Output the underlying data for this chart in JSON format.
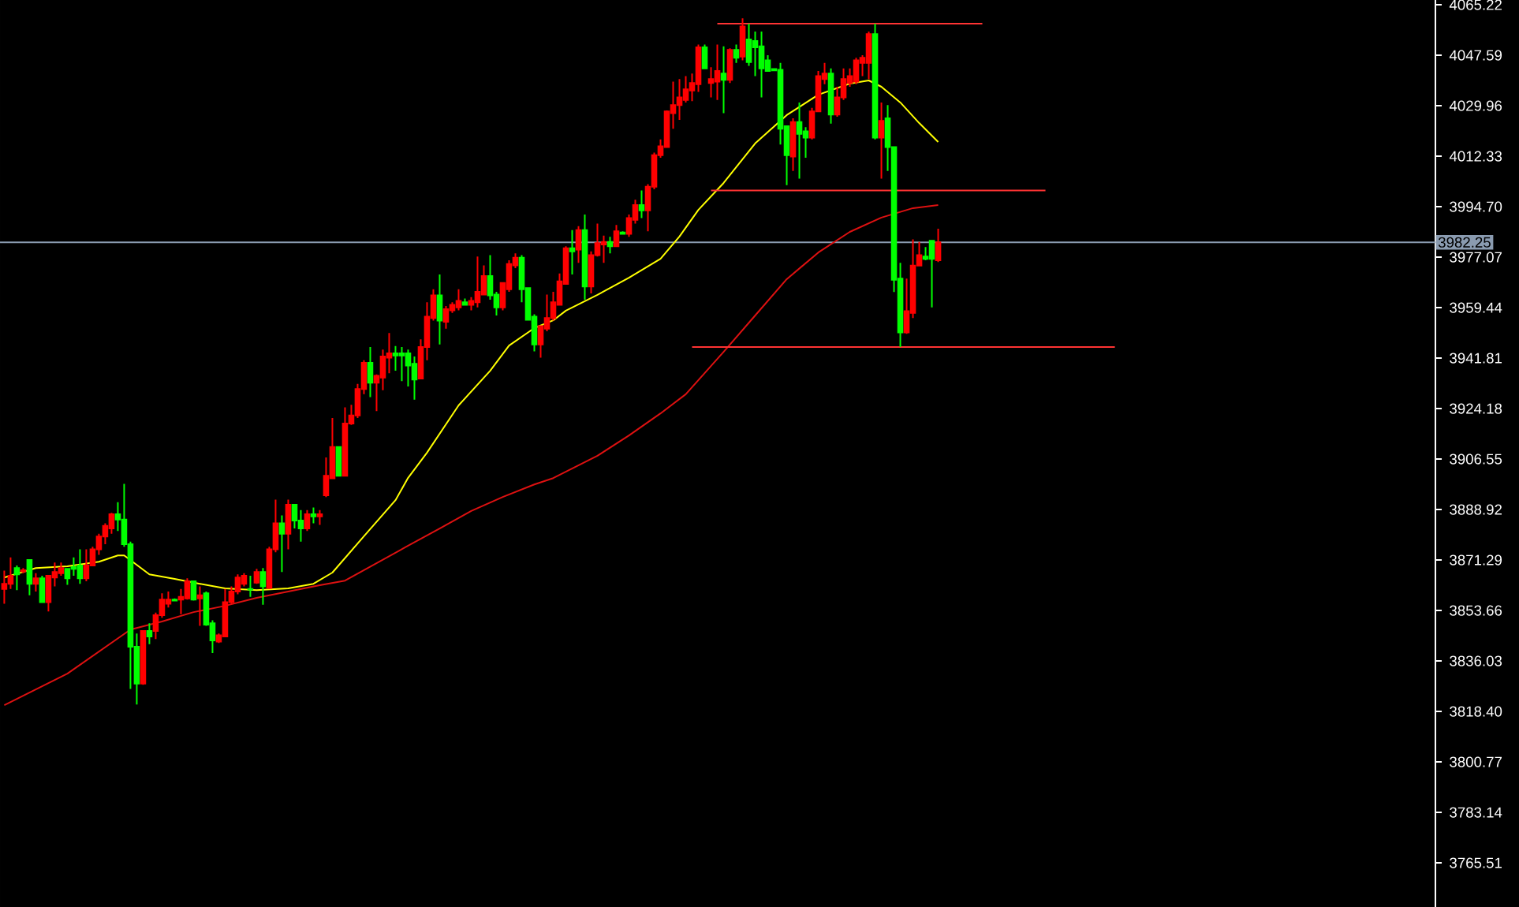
{
  "chart_data": {
    "type": "candlestick",
    "categories": [
      null,
      null,
      null,
      null,
      null,
      null,
      null,
      null,
      null,
      null,
      null,
      null,
      null,
      null,
      null,
      null,
      null,
      null,
      null,
      null,
      null,
      null,
      null,
      null,
      null,
      null,
      null,
      null,
      null,
      null,
      null,
      null,
      null,
      null,
      null,
      null,
      null,
      null,
      null,
      null,
      null,
      null,
      null,
      null,
      null,
      null,
      null,
      null,
      null,
      null,
      null,
      null,
      null,
      null,
      null,
      null,
      null,
      null,
      null,
      null,
      null,
      null,
      null,
      null,
      null,
      null,
      null,
      null,
      null,
      null,
      null,
      null,
      null,
      null,
      null,
      null,
      null,
      null,
      null,
      null,
      null,
      null,
      null,
      null,
      null,
      null,
      null,
      null,
      null,
      null,
      null,
      null,
      null,
      null,
      null,
      null,
      null,
      null,
      null,
      null,
      null,
      null,
      null,
      null,
      null,
      null,
      null,
      null,
      null,
      null,
      null,
      null,
      null,
      null,
      null,
      null,
      null,
      null,
      null,
      null,
      null,
      null,
      null,
      null,
      null,
      null,
      null,
      null,
      null,
      null,
      null,
      null,
      null,
      null,
      null,
      null,
      null,
      null,
      null,
      null,
      null,
      null,
      null,
      null,
      null,
      null,
      null,
      null,
      null,
      null,
      null,
      null,
      null,
      null,
      null,
      null,
      null,
      null,
      null,
      null,
      null,
      null,
      null,
      null,
      null,
      null,
      null,
      null,
      null,
      null,
      null,
      null,
      null,
      null,
      null,
      null,
      null,
      null,
      null,
      null,
      null,
      null,
      null,
      null,
      null,
      null,
      null,
      null,
      null,
      null,
      null,
      null,
      null,
      null,
      null,
      null,
      null,
      null,
      null,
      null,
      null,
      null,
      null,
      null,
      null,
      null,
      null,
      null,
      null,
      null,
      null,
      null,
      null,
      null,
      null,
      null,
      null,
      null,
      null,
      null,
      null,
      null,
      null,
      null,
      null,
      null,
      null
    ],
    "ohlc": [
      [
        3861.2,
        3867.6,
        3856.0,
        3863.0
      ],
      [
        3863.0,
        3872.2,
        3861.2,
        3865.8
      ],
      [
        3868.5,
        3869.4,
        3860.8,
        3866.3
      ],
      [
        3867.3,
        3868.5,
        3866.7,
        3867.7
      ],
      [
        3871.3,
        3871.3,
        3859.0,
        3863.0
      ],
      [
        3863.0,
        3866.7,
        3860.3,
        3864.9
      ],
      [
        3864.9,
        3865.8,
        3856.6,
        3856.6
      ],
      [
        3856.6,
        3865.8,
        3853.3,
        3865.8
      ],
      [
        3865.2,
        3870.4,
        3862.1,
        3867.1
      ],
      [
        3866.7,
        3870.4,
        3865.8,
        3868.5
      ],
      [
        3868.2,
        3868.5,
        3862.6,
        3864.9
      ],
      [
        3868.8,
        3872.2,
        3865.8,
        3868.2
      ],
      [
        3869.4,
        3875.0,
        3863.0,
        3864.9
      ],
      [
        3864.9,
        3875.0,
        3863.9,
        3869.4
      ],
      [
        3869.4,
        3875.9,
        3869.4,
        3875.0
      ],
      [
        3875.0,
        3880.5,
        3873.1,
        3879.5
      ],
      [
        3879.5,
        3884.1,
        3876.8,
        3883.2
      ],
      [
        3882.3,
        3887.8,
        3880.5,
        3887.3
      ],
      [
        3887.3,
        3891.5,
        3881.4,
        3885.4
      ],
      [
        3885.4,
        3897.9,
        3875.9,
        3876.8
      ],
      [
        3876.8,
        3877.7,
        3826.3,
        3841.0
      ],
      [
        3841.0,
        3845.6,
        3820.8,
        3828.1
      ],
      [
        3828.1,
        3846.5,
        3827.7,
        3846.5
      ],
      [
        3846.5,
        3849.2,
        3841.9,
        3844.6
      ],
      [
        3846.5,
        3852.9,
        3843.7,
        3852.0
      ],
      [
        3852.0,
        3859.7,
        3851.1,
        3857.5
      ],
      [
        3856.0,
        3860.3,
        3854.7,
        3857.5
      ],
      [
        3857.5,
        3857.9,
        3857.1,
        3857.1
      ],
      [
        3857.5,
        3861.2,
        3852.4,
        3858.4
      ],
      [
        3857.9,
        3864.9,
        3857.5,
        3863.9
      ],
      [
        3863.9,
        3863.9,
        3857.1,
        3857.5
      ],
      [
        3857.9,
        3862.1,
        3848.3,
        3859.0
      ],
      [
        3859.7,
        3860.3,
        3848.3,
        3848.7
      ],
      [
        3849.2,
        3850.2,
        3838.8,
        3843.2
      ],
      [
        3842.8,
        3845.6,
        3842.3,
        3845.0
      ],
      [
        3844.6,
        3861.2,
        3844.3,
        3856.6
      ],
      [
        3856.6,
        3862.1,
        3856.0,
        3860.3
      ],
      [
        3860.3,
        3866.3,
        3859.3,
        3865.2
      ],
      [
        3863.0,
        3866.7,
        3862.1,
        3865.8
      ],
      [
        3861.2,
        3865.8,
        3858.4,
        3861.0
      ],
      [
        3863.4,
        3868.2,
        3863.0,
        3867.1
      ],
      [
        3867.1,
        3868.5,
        3855.7,
        3862.1
      ],
      [
        3861.5,
        3875.9,
        3861.2,
        3875.0
      ],
      [
        3875.0,
        3892.4,
        3874.0,
        3884.1
      ],
      [
        3884.1,
        3886.9,
        3867.1,
        3880.5
      ],
      [
        3880.5,
        3892.4,
        3875.0,
        3890.6
      ],
      [
        3890.6,
        3890.6,
        3882.3,
        3885.1
      ],
      [
        3885.1,
        3888.7,
        3877.7,
        3882.3
      ],
      [
        3882.3,
        3888.7,
        3881.4,
        3887.3
      ],
      [
        3887.3,
        3889.6,
        3884.1,
        3886.5
      ],
      [
        3886.5,
        3888.7,
        3883.6,
        3887.3
      ],
      [
        3893.9,
        3907.1,
        3893.3,
        3900.7
      ],
      [
        3899.8,
        3920.9,
        3899.8,
        3910.8
      ],
      [
        3910.8,
        3910.8,
        3900.7,
        3900.7
      ],
      [
        3900.7,
        3924.6,
        3900.7,
        3919.0
      ],
      [
        3919.0,
        3925.5,
        3918.5,
        3921.8
      ],
      [
        3921.8,
        3932.8,
        3920.9,
        3931.0
      ],
      [
        3931.0,
        3941.1,
        3929.2,
        3940.2
      ],
      [
        3940.2,
        3945.7,
        3928.2,
        3933.2
      ],
      [
        3933.2,
        3936.1,
        3923.3,
        3935.6
      ],
      [
        3935.0,
        3944.8,
        3930.6,
        3942.4
      ],
      [
        3942.0,
        3950.6,
        3936.5,
        3943.5
      ],
      [
        3943.5,
        3946.0,
        3937.4,
        3942.7
      ],
      [
        3943.5,
        3945.7,
        3933.8,
        3942.7
      ],
      [
        3943.5,
        3944.8,
        3931.9,
        3939.2
      ],
      [
        3939.8,
        3942.4,
        3927.3,
        3934.3
      ],
      [
        3934.7,
        3948.4,
        3934.7,
        3945.7
      ],
      [
        3945.7,
        3961.3,
        3941.1,
        3956.3
      ],
      [
        3955.8,
        3965.9,
        3954.9,
        3963.7
      ],
      [
        3963.7,
        3971.0,
        3946.6,
        3954.9
      ],
      [
        3954.5,
        3960.0,
        3952.1,
        3958.9
      ],
      [
        3958.5,
        3961.3,
        3957.6,
        3960.4
      ],
      [
        3959.5,
        3965.9,
        3958.5,
        3961.8
      ],
      [
        3961.3,
        3962.6,
        3960.4,
        3960.4
      ],
      [
        3960.4,
        3963.1,
        3958.5,
        3961.8
      ],
      [
        3961.3,
        3977.3,
        3959.5,
        3965.0
      ],
      [
        3964.0,
        3974.2,
        3963.7,
        3970.5
      ],
      [
        3970.5,
        3977.8,
        3962.2,
        3963.7
      ],
      [
        3964.0,
        3965.0,
        3956.7,
        3959.5
      ],
      [
        3959.5,
        3968.1,
        3958.5,
        3968.1
      ],
      [
        3965.9,
        3976.0,
        3965.0,
        3974.7
      ],
      [
        3974.2,
        3978.4,
        3973.2,
        3976.9
      ],
      [
        3976.9,
        3977.8,
        3961.3,
        3965.9
      ],
      [
        3966.3,
        3966.3,
        3954.9,
        3955.2
      ],
      [
        3956.3,
        3957.1,
        3944.2,
        3946.6
      ],
      [
        3946.6,
        3953.0,
        3942.0,
        3953.0
      ],
      [
        3952.1,
        3964.0,
        3951.2,
        3955.8
      ],
      [
        3955.8,
        3965.0,
        3954.9,
        3961.3
      ],
      [
        3960.4,
        3971.4,
        3960.4,
        3968.6
      ],
      [
        3967.7,
        3980.9,
        3967.7,
        3980.2
      ],
      [
        3980.2,
        3986.5,
        3971.0,
        3979.1
      ],
      [
        3979.7,
        3987.9,
        3975.1,
        3986.5
      ],
      [
        3986.5,
        3992.0,
        3962.2,
        3966.8
      ],
      [
        3966.8,
        3979.1,
        3964.4,
        3977.8
      ],
      [
        3977.8,
        3988.8,
        3977.3,
        3982.0
      ],
      [
        3981.5,
        3984.6,
        3975.1,
        3982.4
      ],
      [
        3982.4,
        3984.2,
        3978.4,
        3980.9
      ],
      [
        3980.9,
        3988.3,
        3980.6,
        3986.1
      ],
      [
        3985.7,
        3986.1,
        3985.2,
        3985.2
      ],
      [
        3985.2,
        3992.0,
        3984.2,
        3990.7
      ],
      [
        3990.1,
        3997.1,
        3988.8,
        3995.3
      ],
      [
        3995.3,
        4000.4,
        3990.7,
        3993.4
      ],
      [
        3993.4,
        4002.6,
        3986.1,
        4001.7
      ],
      [
        4001.7,
        4013.6,
        4000.8,
        4012.7
      ],
      [
        4012.7,
        4018.2,
        4011.8,
        4015.8
      ],
      [
        4015.5,
        4028.3,
        4015.5,
        4028.0
      ],
      [
        4027.4,
        4038.4,
        4021.9,
        4030.2
      ],
      [
        4030.2,
        4039.3,
        4025.0,
        4032.9
      ],
      [
        4032.0,
        4040.3,
        4031.1,
        4035.7
      ],
      [
        4035.3,
        4041.2,
        4031.6,
        4037.9
      ],
      [
        4037.5,
        4051.3,
        4034.8,
        4050.4
      ],
      [
        4050.4,
        4051.3,
        4042.7,
        4043.0
      ],
      [
        4037.9,
        4043.4,
        4032.9,
        4039.3
      ],
      [
        4038.4,
        4051.3,
        4032.0,
        4042.1
      ],
      [
        4041.2,
        4050.7,
        4027.4,
        4039.0
      ],
      [
        4039.0,
        4050.0,
        4037.9,
        4049.5
      ],
      [
        4049.5,
        4051.3,
        4044.9,
        4046.7
      ],
      [
        4047.1,
        4060.5,
        4045.8,
        4057.7
      ],
      [
        4053.1,
        4058.6,
        4043.9,
        4045.2
      ],
      [
        4052.6,
        4055.9,
        4040.3,
        4050.4
      ],
      [
        4050.7,
        4055.9,
        4032.9,
        4043.0
      ],
      [
        4045.8,
        4047.6,
        4042.1,
        4042.1
      ],
      [
        4042.8,
        4043.0,
        4042.1,
        4042.3
      ],
      [
        4042.5,
        4044.9,
        4016.4,
        4021.9
      ],
      [
        4022.8,
        4022.8,
        4002.2,
        4012.7
      ],
      [
        4012.2,
        4025.6,
        4007.2,
        4024.3
      ],
      [
        4024.3,
        4031.1,
        4004.5,
        4020.1
      ],
      [
        4021.0,
        4022.5,
        4011.8,
        4018.8
      ],
      [
        4018.8,
        4029.2,
        4018.2,
        4028.0
      ],
      [
        4028.0,
        4042.1,
        4028.0,
        4040.3
      ],
      [
        4039.3,
        4044.9,
        4037.5,
        4041.2
      ],
      [
        4041.2,
        4043.0,
        4023.7,
        4026.9
      ],
      [
        4026.9,
        4036.6,
        4026.1,
        4032.9
      ],
      [
        4032.9,
        4043.0,
        4032.0,
        4039.3
      ],
      [
        4037.9,
        4043.0,
        4036.6,
        4040.3
      ],
      [
        4038.4,
        4046.7,
        4037.5,
        4045.8
      ],
      [
        4044.9,
        4047.6,
        4040.3,
        4046.7
      ],
      [
        4044.9,
        4055.9,
        4039.3,
        4055.0
      ],
      [
        4055.0,
        4058.6,
        4018.2,
        4018.8
      ],
      [
        4018.8,
        4031.1,
        4004.5,
        4024.7
      ],
      [
        4025.6,
        4030.2,
        4007.2,
        4015.5
      ],
      [
        4015.5,
        4015.5,
        3964.9,
        3969.2
      ],
      [
        3969.6,
        3975.1,
        3945.7,
        3950.8
      ],
      [
        3950.8,
        3969.6,
        3950.3,
        3958.2
      ],
      [
        3957.6,
        3983.3,
        3955.8,
        3974.1
      ],
      [
        3974.1,
        3982.4,
        3974.1,
        3977.8
      ],
      [
        3977.3,
        3980.6,
        3976.0,
        3976.5
      ],
      [
        3982.8,
        3982.8,
        3959.5,
        3976.5
      ],
      [
        3976.0,
        3987.0,
        3975.4,
        3982.25
      ],
      null,
      null,
      null,
      null,
      null,
      null,
      null,
      null,
      null,
      null,
      null,
      null,
      null,
      null,
      null,
      null,
      null,
      null,
      null,
      null,
      null,
      null,
      null,
      null,
      null,
      null,
      null,
      null,
      null,
      null,
      null,
      null,
      null,
      null,
      null,
      null,
      null,
      null,
      null,
      null,
      null,
      null,
      null,
      null,
      null,
      null,
      null,
      null,
      null,
      null,
      null,
      null,
      null,
      null,
      null,
      null,
      null,
      null,
      null,
      null,
      null,
      null,
      null,
      null,
      null,
      null,
      null,
      null,
      null,
      null,
      null,
      null,
      null,
      null,
      null,
      null,
      null,
      null
    ],
    "colors": [
      "#ff0000",
      "#ff0000",
      "#00ff00",
      "#ff0000",
      "#00ff00",
      "#ff0000",
      "#00ff00",
      "#ff0000",
      "#ff0000",
      "#ff0000",
      "#00ff00",
      "#00ff00",
      "#00ff00",
      "#ff0000",
      "#ff0000",
      "#ff0000",
      "#ff0000",
      "#ff0000",
      "#00ff00",
      "#00ff00",
      "#00ff00",
      "#00ff00",
      "#ff0000",
      "#00ff00",
      "#ff0000",
      "#ff0000",
      "#ff0000",
      "#00ff00",
      "#ff0000",
      "#ff0000",
      "#00ff00",
      "#ff0000",
      "#00ff00",
      "#00ff00",
      "#ff0000",
      "#ff0000",
      "#ff0000",
      "#ff0000",
      "#ff0000",
      "#00ff00",
      "#ff0000",
      "#00ff00",
      "#ff0000",
      "#ff0000",
      "#00ff00",
      "#ff0000",
      "#00ff00",
      "#00ff00",
      "#ff0000",
      "#00ff00",
      "#ff0000",
      "#ff0000",
      "#ff0000",
      "#00ff00",
      "#ff0000",
      "#ff0000",
      "#ff0000",
      "#ff0000",
      "#00ff00",
      "#ff0000",
      "#ff0000",
      "#ff0000",
      "#00ff00",
      "#00ff00",
      "#00ff00",
      "#00ff00",
      "#ff0000",
      "#ff0000",
      "#ff0000",
      "#00ff00",
      "#ff0000",
      "#ff0000",
      "#ff0000",
      "#00ff00",
      "#ff0000",
      "#ff0000",
      "#ff0000",
      "#00ff00",
      "#00ff00",
      "#ff0000",
      "#ff0000",
      "#ff0000",
      "#00ff00",
      "#00ff00",
      "#00ff00",
      "#ff0000",
      "#ff0000",
      "#ff0000",
      "#ff0000",
      "#ff0000",
      "#00ff00",
      "#ff0000",
      "#00ff00",
      "#ff0000",
      "#ff0000",
      "#ff0000",
      "#00ff00",
      "#ff0000",
      "#00ff00",
      "#ff0000",
      "#ff0000",
      "#00ff00",
      "#ff0000",
      "#ff0000",
      "#ff0000",
      "#ff0000",
      "#ff0000",
      "#ff0000",
      "#ff0000",
      "#ff0000",
      "#ff0000",
      "#00ff00",
      "#ff0000",
      "#ff0000",
      "#00ff00",
      "#ff0000",
      "#00ff00",
      "#ff0000",
      "#00ff00",
      "#00ff00",
      "#00ff00",
      "#00ff00",
      "#00ff00",
      "#00ff00",
      "#00ff00",
      "#ff0000",
      "#00ff00",
      "#00ff00",
      "#ff0000",
      "#ff0000",
      "#ff0000",
      "#00ff00",
      "#ff0000",
      "#ff0000",
      "#ff0000",
      "#ff0000",
      "#ff0000",
      "#ff0000",
      "#00ff00",
      "#ff0000",
      "#00ff00",
      "#00ff00",
      "#00ff00",
      "#ff0000",
      "#ff0000",
      "#ff0000",
      "#00ff00",
      "#00ff00",
      "#ff0000",
      null,
      null,
      null,
      null,
      null,
      null,
      null,
      null,
      null,
      null,
      null,
      null,
      null,
      null,
      null,
      null,
      null,
      null,
      null,
      null,
      null,
      null,
      null,
      null,
      null,
      null,
      null,
      null,
      null,
      null,
      null,
      null,
      null,
      null,
      null,
      null,
      null,
      null,
      null,
      null,
      null,
      null,
      null,
      null,
      null,
      null,
      null,
      null,
      null,
      null,
      null,
      null,
      null,
      null,
      null,
      null,
      null,
      null,
      null,
      null,
      null,
      null,
      null,
      null,
      null,
      null,
      null,
      null,
      null,
      null,
      null,
      null,
      null,
      null,
      null,
      null,
      null,
      null
    ],
    "series": [
      {
        "type": "line",
        "color": "#ffff00",
        "values": [
          3865.2,
          null,
          null,
          null,
          null,
          3868.5,
          null,
          null,
          null,
          null,
          3869.1,
          null,
          null,
          null,
          null,
          3870.7,
          null,
          null,
          3872.9,
          3872.9,
          null,
          3869.6,
          null,
          3866.3,
          null,
          null,
          null,
          3864.7,
          null,
          null,
          null,
          3863.0,
          null,
          null,
          null,
          3861.4,
          null,
          null,
          null,
          null,
          3860.8,
          null,
          null,
          null,
          null,
          3861.4,
          null,
          null,
          null,
          3863.0,
          null,
          null,
          3866.9,
          null,
          null,
          null,
          null,
          3879.6,
          null,
          null,
          null,
          null,
          3892.2,
          null,
          3900.0,
          null,
          null,
          3908.8,
          null,
          null,
          null,
          null,
          3925.3,
          null,
          null,
          null,
          null,
          3937.4,
          null,
          null,
          3946.2,
          null,
          null,
          null,
          3952.3,
          null,
          null,
          3955.0,
          null,
          3958.4,
          null,
          null,
          null,
          null,
          3963.9,
          null,
          null,
          null,
          null,
          3969.9,
          null,
          null,
          null,
          null,
          3976.5,
          null,
          null,
          3984.3,
          null,
          null,
          3993.6,
          null,
          null,
          null,
          4003.0,
          null,
          null,
          null,
          null,
          4016.8,
          null,
          null,
          null,
          null,
          4026.7,
          null,
          null,
          null,
          null,
          4033.8,
          null,
          null,
          null,
          null,
          4037.7,
          null,
          null,
          4038.8,
          null,
          4036.6,
          null,
          null,
          4031.1,
          null,
          null,
          4023.9,
          null,
          null,
          4017.3,
          null,
          null,
          null,
          null,
          null,
          null,
          null,
          null,
          null,
          null,
          null,
          null,
          null,
          null,
          null,
          null,
          null,
          null,
          null,
          null,
          null,
          null,
          null,
          null,
          null,
          null,
          null,
          null,
          null,
          null,
          null,
          null,
          null,
          null,
          null,
          null,
          null,
          null,
          null,
          null,
          null,
          null,
          null,
          null,
          null,
          null,
          null,
          null,
          null,
          null,
          null,
          null,
          null,
          null,
          null,
          null,
          null,
          null,
          null,
          null,
          null,
          null,
          null,
          null,
          null,
          null,
          null,
          null,
          null,
          null,
          null,
          null,
          null,
          null,
          null,
          null,
          null,
          null
        ]
      },
      {
        "type": "line",
        "color": "#dd1111",
        "values": [
          3820.6,
          null,
          null,
          null,
          null,
          null,
          null,
          null,
          null,
          null,
          3831.6,
          null,
          null,
          null,
          null,
          null,
          null,
          null,
          null,
          null,
          3847.0,
          null,
          null,
          null,
          null,
          3849.8,
          null,
          null,
          null,
          null,
          3853.1,
          null,
          null,
          null,
          null,
          3855.3,
          null,
          null,
          null,
          null,
          3858.1,
          null,
          null,
          null,
          null,
          3860.3,
          null,
          null,
          null,
          null,
          3862.5,
          null,
          null,
          null,
          3864.1,
          null,
          null,
          null,
          null,
          3870.2,
          null,
          null,
          null,
          null,
          3876.3,
          null,
          null,
          null,
          null,
          3882.3,
          null,
          null,
          null,
          null,
          3888.4,
          null,
          null,
          null,
          null,
          3893.3,
          null,
          null,
          null,
          null,
          3897.7,
          null,
          null,
          3899.9,
          null,
          null,
          null,
          null,
          null,
          null,
          3907.7,
          null,
          null,
          null,
          null,
          3914.8,
          null,
          null,
          null,
          null,
          3922.5,
          null,
          null,
          null,
          3929.2,
          null,
          null,
          null,
          null,
          null,
          3944.0,
          null,
          null,
          null,
          null,
          3956.7,
          null,
          null,
          null,
          null,
          3969.4,
          null,
          null,
          null,
          null,
          3978.7,
          null,
          null,
          null,
          null,
          3985.9,
          null,
          null,
          null,
          null,
          3990.9,
          null,
          null,
          null,
          null,
          3994.2,
          null,
          null,
          null,
          3995.3,
          null,
          null,
          null,
          null,
          null,
          null,
          null,
          null,
          null,
          null,
          null,
          null,
          null,
          null,
          null,
          null,
          null,
          null,
          null,
          null,
          null,
          null,
          null,
          null,
          null,
          null,
          null,
          null,
          null,
          null,
          null,
          null,
          null,
          null,
          null,
          null,
          null,
          null,
          null,
          null,
          null,
          null,
          null,
          null,
          null,
          null,
          null,
          null,
          null,
          null,
          null,
          null,
          null,
          null,
          null,
          null,
          null,
          null,
          null,
          null,
          null,
          null,
          null,
          null,
          null,
          null,
          null,
          null,
          null,
          null,
          null,
          null,
          null,
          null,
          null,
          null,
          null,
          null
        ]
      },
      {
        "type": "line",
        "color": "#ff3333",
        "values": [
          null,
          null,
          null,
          null,
          null,
          null,
          null,
          null,
          null,
          null,
          null,
          null,
          null,
          null,
          null,
          null,
          null,
          null,
          null,
          null,
          null,
          null,
          null,
          null,
          null,
          null,
          null,
          null,
          null,
          null,
          null,
          null,
          null,
          null,
          null,
          null,
          null,
          null,
          null,
          null,
          null,
          null,
          null,
          null,
          null,
          null,
          null,
          null,
          null,
          null,
          null,
          null,
          null,
          null,
          null,
          null,
          null,
          null,
          null,
          null,
          null,
          null,
          null,
          null,
          null,
          null,
          null,
          null,
          null,
          null,
          null,
          null,
          null,
          null,
          null,
          null,
          null,
          null,
          null,
          null,
          null,
          null,
          null,
          null,
          null,
          null,
          null,
          null,
          null,
          null,
          null,
          null,
          null,
          null,
          null,
          null,
          null,
          null,
          null,
          null,
          null,
          null,
          null,
          null,
          null,
          null,
          null,
          null,
          null,
          null,
          null,
          null,
          null,
          4058.6,
          4058.6,
          4058.6,
          4058.6,
          4058.6,
          4058.6,
          4058.6,
          4058.6,
          4058.6,
          4058.6,
          4058.6,
          4058.6,
          4058.6,
          4058.6,
          4058.6,
          4058.6,
          4058.6,
          4058.6,
          4058.6,
          4058.6,
          4058.6,
          4058.6,
          4058.6,
          4058.6,
          4058.6,
          4058.6,
          4058.6,
          4058.6,
          4058.6,
          4058.6,
          4058.6,
          4058.6,
          4058.6,
          4058.6,
          4058.6,
          4058.6,
          4058.6,
          4058.6,
          4058.6,
          4058.6,
          4058.6,
          4058.6,
          4058.6,
          null,
          null,
          null,
          null,
          null,
          null,
          null,
          null,
          null,
          null,
          null,
          null,
          null,
          null,
          null,
          null,
          null,
          null,
          null,
          null,
          null,
          null,
          null,
          null,
          null,
          null,
          null,
          null,
          null,
          null,
          null,
          null,
          null,
          null,
          null,
          null,
          null,
          null,
          null,
          null,
          null,
          null,
          null,
          null,
          null,
          null,
          null,
          null,
          null,
          null,
          null,
          null,
          null,
          null,
          null,
          null,
          null,
          null,
          null,
          null,
          null,
          null,
          null,
          null,
          null,
          null,
          null,
          null,
          null,
          null,
          null
        ]
      },
      {
        "type": "line",
        "color": "#ff3333",
        "values": [
          null,
          null,
          null,
          null,
          null,
          null,
          null,
          null,
          null,
          null,
          null,
          null,
          null,
          null,
          null,
          null,
          null,
          null,
          null,
          null,
          null,
          null,
          null,
          null,
          null,
          null,
          null,
          null,
          null,
          null,
          null,
          null,
          null,
          null,
          null,
          null,
          null,
          null,
          null,
          null,
          null,
          null,
          null,
          null,
          null,
          null,
          null,
          null,
          null,
          null,
          null,
          null,
          null,
          null,
          null,
          null,
          null,
          null,
          null,
          null,
          null,
          null,
          null,
          null,
          null,
          null,
          null,
          null,
          null,
          null,
          null,
          null,
          null,
          null,
          null,
          null,
          null,
          null,
          null,
          null,
          null,
          null,
          null,
          null,
          null,
          null,
          null,
          null,
          null,
          null,
          null,
          null,
          null,
          null,
          null,
          null,
          null,
          null,
          null,
          null,
          null,
          null,
          null,
          null,
          null,
          null,
          null,
          null,
          null,
          null,
          null,
          null,
          4000.4,
          4000.4,
          4000.4,
          4000.4,
          4000.4,
          4000.4,
          4000.4,
          4000.4,
          4000.4,
          4000.4,
          4000.4,
          4000.4,
          4000.4,
          4000.4,
          4000.4,
          4000.4,
          4000.4,
          4000.4,
          4000.4,
          4000.4,
          4000.4,
          4000.4,
          4000.4,
          4000.4,
          4000.4,
          4000.4,
          4000.4,
          4000.4,
          4000.4,
          4000.4,
          4000.4,
          4000.4,
          4000.4,
          4000.4,
          4000.4,
          4000.4,
          4000.4,
          4000.4,
          4000.4,
          4000.4,
          4000.4,
          4000.4,
          4000.4,
          4000.4,
          4000.4,
          4000.4,
          4000.4,
          4000.4,
          4000.4,
          4000.4,
          4000.4,
          4000.4,
          4000.4,
          4000.4,
          null,
          null,
          null,
          null,
          null,
          null,
          null,
          null,
          null,
          null,
          null,
          null,
          null,
          null,
          null,
          null,
          null,
          null,
          null,
          null,
          null,
          null,
          null,
          null,
          null,
          null,
          null,
          null,
          null,
          null,
          null,
          null,
          null,
          null,
          null,
          null,
          null,
          null,
          null,
          null,
          null,
          null,
          null,
          null,
          null,
          null,
          null,
          null,
          null,
          null,
          null,
          null,
          null,
          null,
          null,
          null,
          null,
          null,
          null,
          null,
          null
        ]
      },
      {
        "type": "line",
        "color": "#ff3333",
        "values": [
          null,
          null,
          null,
          null,
          null,
          null,
          null,
          null,
          null,
          null,
          null,
          null,
          null,
          null,
          null,
          null,
          null,
          null,
          null,
          null,
          null,
          null,
          null,
          null,
          null,
          null,
          null,
          null,
          null,
          null,
          null,
          null,
          null,
          null,
          null,
          null,
          null,
          null,
          null,
          null,
          null,
          null,
          null,
          null,
          null,
          null,
          null,
          null,
          null,
          null,
          null,
          null,
          null,
          null,
          null,
          null,
          null,
          null,
          null,
          null,
          null,
          null,
          null,
          null,
          null,
          null,
          null,
          null,
          null,
          null,
          null,
          null,
          null,
          null,
          null,
          null,
          null,
          null,
          null,
          null,
          null,
          null,
          null,
          null,
          null,
          null,
          null,
          null,
          null,
          null,
          null,
          null,
          null,
          null,
          null,
          null,
          null,
          null,
          null,
          null,
          null,
          null,
          null,
          null,
          null,
          null,
          null,
          null,
          null,
          3945.7,
          3945.7,
          3945.7,
          3945.7,
          3945.7,
          3945.7,
          3945.7,
          3945.7,
          3945.7,
          3945.7,
          3945.7,
          3945.7,
          3945.7,
          3945.7,
          3945.7,
          3945.7,
          3945.7,
          3945.7,
          3945.7,
          3945.7,
          3945.7,
          3945.7,
          3945.7,
          3945.7,
          3945.7,
          3945.7,
          3945.7,
          3945.7,
          3945.7,
          3945.7,
          3945.7,
          3945.7,
          3945.7,
          3945.7,
          3945.7,
          3945.7,
          3945.7,
          3945.7,
          3945.7,
          3945.7,
          3945.7,
          3945.7,
          3945.7,
          3945.7,
          3945.7,
          3945.7,
          3945.7,
          3945.7,
          3945.7,
          3945.7,
          3945.7,
          3945.7,
          3945.7,
          3945.7,
          3945.7,
          3945.7,
          3945.7,
          3945.7,
          3945.7,
          3945.7,
          3945.7,
          3945.7,
          3945.7,
          3945.7,
          3945.7,
          3945.7,
          3945.7,
          3945.7,
          null,
          null,
          null,
          null,
          null,
          null,
          null,
          null,
          null,
          null,
          null,
          null,
          null,
          null,
          null,
          null,
          null,
          null,
          null,
          null,
          null,
          null,
          null,
          null,
          null,
          null,
          null,
          null,
          null,
          null,
          null,
          null,
          null,
          null,
          null,
          null,
          null,
          null,
          null,
          null,
          null,
          null,
          null,
          null,
          null,
          null,
          null,
          null,
          null,
          null
        ]
      }
    ],
    "ref_lines": [
      {
        "axis": "y",
        "value": 3982.25,
        "label": "3982.25",
        "color": "#8a9bb0"
      }
    ],
    "ylim": [
      3750.1,
      4066.9
    ],
    "yticks": [
      4065.22,
      4047.59,
      4029.96,
      4012.33,
      {
        "value": 3994.7,
        "label": "3994.70"
      },
      3977.07,
      3959.44,
      3941.81,
      3924.18,
      3906.55,
      3888.92,
      3871.29,
      3853.66,
      3836.03,
      {
        "value": 3818.4,
        "label": "3818.40"
      },
      3800.77,
      3783.14,
      3765.51
    ],
    "tick_labels": "y"
  }
}
